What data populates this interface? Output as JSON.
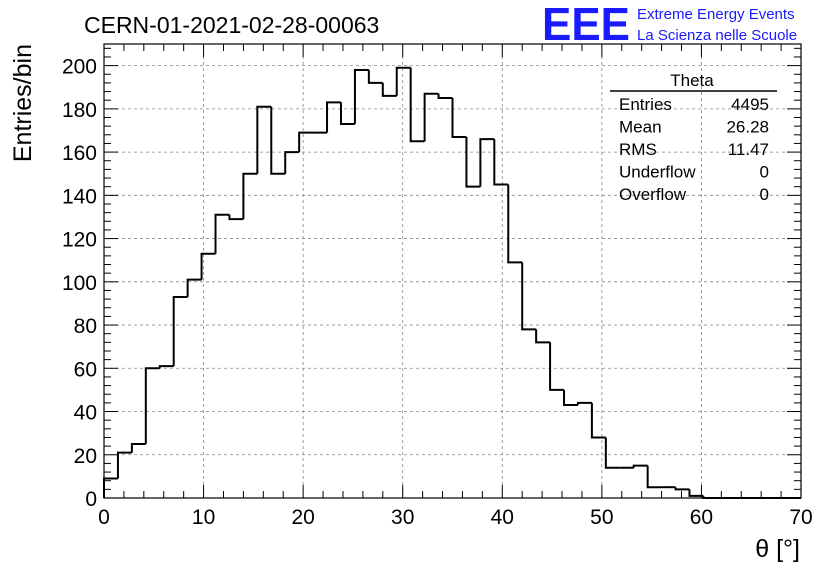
{
  "header": {
    "run_title": "CERN-01-2021-02-28-00063",
    "logo_text": "EEE",
    "logo_line1": "Extreme Energy Events",
    "logo_line2": "La Scienza nelle Scuole",
    "logo_color": "#1a1aff"
  },
  "stats": {
    "title": "Theta",
    "rows": [
      {
        "label": "Entries",
        "value": "4495"
      },
      {
        "label": "Mean",
        "value": "26.28"
      },
      {
        "label": "RMS",
        "value": "11.47"
      },
      {
        "label": "Underflow",
        "value": "0"
      },
      {
        "label": "Overflow",
        "value": "0"
      }
    ]
  },
  "chart_data": {
    "type": "bar",
    "style": "step-histogram",
    "title": "CERN-01-2021-02-28-00063",
    "xlabel": "θ [°]",
    "ylabel": "Entries/bin",
    "xlim": [
      0,
      70
    ],
    "ylim": [
      0,
      210
    ],
    "grid": true,
    "bin_width": 1.4,
    "bin_edges_start": 0,
    "values": [
      9,
      21,
      25,
      60,
      61,
      93,
      101,
      113,
      131,
      129,
      150,
      181,
      150,
      160,
      169,
      169,
      183,
      173,
      198,
      192,
      186,
      199,
      165,
      187,
      185,
      167,
      144,
      166,
      145,
      109,
      78,
      72,
      50,
      43,
      44,
      28,
      14,
      14,
      15,
      5,
      5,
      4,
      1,
      0,
      0,
      0,
      0,
      0,
      0,
      0
    ],
    "x_ticks": [
      "0",
      "10",
      "20",
      "30",
      "40",
      "50",
      "60",
      "70"
    ],
    "y_ticks": [
      "0",
      "20",
      "40",
      "60",
      "80",
      "100",
      "120",
      "140",
      "160",
      "180",
      "200"
    ],
    "line_color": "#000000"
  }
}
